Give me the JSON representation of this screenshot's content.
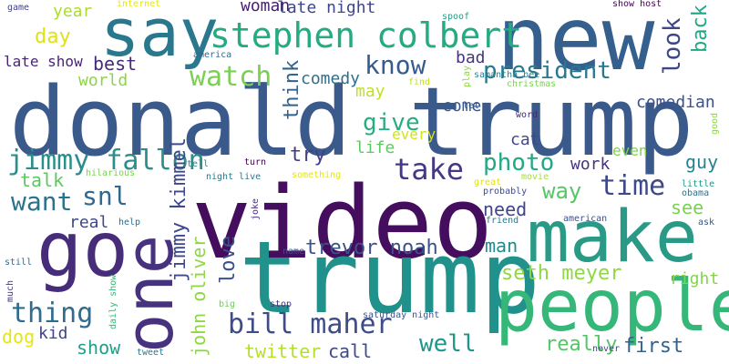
{
  "words": [
    {
      "id": "donald-trump",
      "text": "donald trump",
      "color": "#3b5a8c"
    },
    {
      "id": "video",
      "text": "video",
      "color": "#440d5e"
    },
    {
      "id": "trump",
      "text": "trump",
      "color": "#21918c"
    },
    {
      "id": "new",
      "text": "new",
      "color": "#355f8d"
    },
    {
      "id": "make",
      "text": "make",
      "color": "#2a9a87"
    },
    {
      "id": "people",
      "text": "people",
      "color": "#35b779"
    },
    {
      "id": "one",
      "text": "one",
      "color": "#46327e"
    },
    {
      "id": "go",
      "text": "go",
      "color": "#472c7a"
    },
    {
      "id": "say",
      "text": "say",
      "color": "#2a788e"
    },
    {
      "id": "stephen-colbert",
      "text": "stephen colbert",
      "color": "#25ab82"
    },
    {
      "id": "know",
      "text": "know",
      "color": "#365c8d"
    },
    {
      "id": "president",
      "text": "president",
      "color": "#2a788e"
    },
    {
      "id": "look",
      "text": "look",
      "color": "#3f4788"
    },
    {
      "id": "back",
      "text": "back",
      "color": "#22a785"
    },
    {
      "id": "comedian",
      "text": "comedian",
      "color": "#3b528b"
    },
    {
      "id": "watch",
      "text": "watch",
      "color": "#7ad151"
    },
    {
      "id": "jimmy-fallon",
      "text": "jimmy fallon",
      "color": "#2c8e8c"
    },
    {
      "id": "take",
      "text": "take",
      "color": "#443983"
    },
    {
      "id": "give",
      "text": "give",
      "color": "#27ad81"
    },
    {
      "id": "photo",
      "text": "photo",
      "color": "#22a884"
    },
    {
      "id": "time",
      "text": "time",
      "color": "#3e4989"
    },
    {
      "id": "way",
      "text": "way",
      "color": "#56c667"
    },
    {
      "id": "snl",
      "text": "snl",
      "color": "#31688e"
    },
    {
      "id": "want",
      "text": "want",
      "color": "#2c728e"
    },
    {
      "id": "jimmy-kimmel",
      "text": "jimmy kimmel",
      "color": "#3f4889"
    },
    {
      "id": "trevor-noah",
      "text": "trevor noah",
      "color": "#3b528b"
    },
    {
      "id": "seth-meyer",
      "text": "seth meyer",
      "color": "#8fd744"
    },
    {
      "id": "bill-maher",
      "text": "bill maher",
      "color": "#3e4c8a"
    },
    {
      "id": "thing",
      "text": "thing",
      "color": "#2f6c8e"
    },
    {
      "id": "john-oliver",
      "text": "john oliver",
      "color": "#8fd744"
    },
    {
      "id": "love",
      "text": "love",
      "color": "#3b528b"
    },
    {
      "id": "well",
      "text": "well",
      "color": "#1f968b"
    },
    {
      "id": "really",
      "text": "really",
      "color": "#55c568"
    },
    {
      "id": "first",
      "text": "first",
      "color": "#33638d"
    },
    {
      "id": "show",
      "text": "show",
      "color": "#1fa088"
    },
    {
      "id": "twitter",
      "text": "twitter",
      "color": "#b5de2b"
    },
    {
      "id": "call",
      "text": "call",
      "color": "#3e4a89"
    },
    {
      "id": "dog",
      "text": "dog",
      "color": "#e5e419"
    },
    {
      "id": "kid",
      "text": "kid",
      "color": "#414487"
    },
    {
      "id": "man",
      "text": "man",
      "color": "#238a8d"
    },
    {
      "id": "need",
      "text": "need",
      "color": "#404588"
    },
    {
      "id": "see",
      "text": "see",
      "color": "#7ad151"
    },
    {
      "id": "guy",
      "text": "guy",
      "color": "#26828e"
    },
    {
      "id": "right",
      "text": "right",
      "color": "#84d44b"
    },
    {
      "id": "work",
      "text": "work",
      "color": "#463480"
    },
    {
      "id": "even",
      "text": "even",
      "color": "#7fd34e"
    },
    {
      "id": "cat",
      "text": "cat",
      "color": "#3e4989"
    },
    {
      "id": "life",
      "text": "life",
      "color": "#5ec962"
    },
    {
      "id": "every",
      "text": "every",
      "color": "#d2e21b"
    },
    {
      "id": "try",
      "text": "try",
      "color": "#423f85"
    },
    {
      "id": "think",
      "text": "think",
      "color": "#33638d"
    },
    {
      "id": "may",
      "text": "may",
      "color": "#c2df23"
    },
    {
      "id": "bad",
      "text": "bad",
      "color": "#453581"
    },
    {
      "id": "come",
      "text": "come",
      "color": "#38588c"
    },
    {
      "id": "comedy",
      "text": "comedy",
      "color": "#2d708e"
    },
    {
      "id": "late-night",
      "text": "late night",
      "color": "#3f4788"
    },
    {
      "id": "woman",
      "text": "woman",
      "color": "#481f70"
    },
    {
      "id": "best",
      "text": "best",
      "color": "#472a7a"
    },
    {
      "id": "late-show",
      "text": "late show",
      "color": "#482576"
    },
    {
      "id": "world",
      "text": "world",
      "color": "#8bd646"
    },
    {
      "id": "year",
      "text": "year",
      "color": "#addc30"
    },
    {
      "id": "day",
      "text": "day",
      "color": "#dde318"
    },
    {
      "id": "talk",
      "text": "talk",
      "color": "#5cc863"
    },
    {
      "id": "real",
      "text": "real",
      "color": "#3e4989"
    },
    {
      "id": "internet",
      "text": "internet",
      "color": "#e5e419"
    },
    {
      "id": "game",
      "text": "game",
      "color": "#414487"
    },
    {
      "id": "spoof",
      "text": "spoof",
      "color": "#1f9e89"
    },
    {
      "id": "show-host",
      "text": "show host",
      "color": "#440154"
    },
    {
      "id": "america",
      "text": "america",
      "color": "#31688e"
    },
    {
      "id": "samantha-bee",
      "text": "samantha bee",
      "color": "#27808e"
    },
    {
      "id": "play",
      "text": "play",
      "color": "#8fd744"
    },
    {
      "id": "find",
      "text": "find",
      "color": "#bddf26"
    },
    {
      "id": "christmas",
      "text": "christmas",
      "color": "#7ad151"
    },
    {
      "id": "let",
      "text": "let",
      "color": "#3b528b"
    },
    {
      "id": "word",
      "text": "word",
      "color": "#482878"
    },
    {
      "id": "good",
      "text": "good",
      "color": "#8fd744"
    },
    {
      "id": "something",
      "text": "something",
      "color": "#e5e419"
    },
    {
      "id": "movie",
      "text": "movie",
      "color": "#a8db34"
    },
    {
      "id": "great",
      "text": "great",
      "color": "#dde318"
    },
    {
      "id": "probably",
      "text": "probably",
      "color": "#3e4989"
    },
    {
      "id": "friend",
      "text": "friend",
      "color": "#2a788e"
    },
    {
      "id": "little",
      "text": "little",
      "color": "#1f968b"
    },
    {
      "id": "obama",
      "text": "obama",
      "color": "#2c728e"
    },
    {
      "id": "american",
      "text": "american",
      "color": "#3b528b"
    },
    {
      "id": "ask",
      "text": "ask",
      "color": "#3b528b"
    },
    {
      "id": "tell",
      "text": "tell",
      "color": "#238a8d"
    },
    {
      "id": "turn",
      "text": "turn",
      "color": "#440154"
    },
    {
      "id": "night-live",
      "text": "night live",
      "color": "#2a788e"
    },
    {
      "id": "hilarious",
      "text": "hilarious",
      "color": "#7ad151"
    },
    {
      "id": "joke",
      "text": "joke",
      "color": "#46337e"
    },
    {
      "id": "help",
      "text": "help",
      "color": "#2f6c8e"
    },
    {
      "id": "name",
      "text": "name",
      "color": "#3e4989"
    },
    {
      "id": "stop",
      "text": "stop",
      "color": "#46337e"
    },
    {
      "id": "saturday-night",
      "text": "saturday night",
      "color": "#3b528b"
    },
    {
      "id": "big",
      "text": "big",
      "color": "#6ccd5a"
    },
    {
      "id": "still",
      "text": "still",
      "color": "#2d708e"
    },
    {
      "id": "much",
      "text": "much",
      "color": "#46337e"
    },
    {
      "id": "daily-show",
      "text": "daily show",
      "color": "#35b779"
    },
    {
      "id": "tweet",
      "text": "tweet",
      "color": "#2a788e"
    },
    {
      "id": "never",
      "text": "never",
      "color": "#3e4989"
    }
  ]
}
